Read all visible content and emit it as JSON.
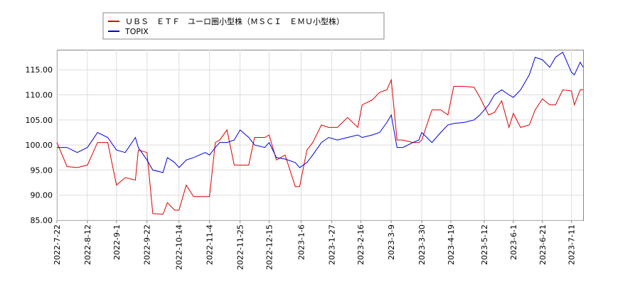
{
  "chart_data": {
    "type": "line",
    "x": [
      "2022-7-22",
      "2022-7-29",
      "2022-8-5",
      "2022-8-12",
      "2022-8-19",
      "2022-8-26",
      "2022-9-1",
      "2022-9-7",
      "2022-9-14",
      "2022-9-16",
      "2022-9-22",
      "2022-9-26",
      "2022-10-3",
      "2022-10-6",
      "2022-10-11",
      "2022-10-14",
      "2022-10-19",
      "2022-10-24",
      "2022-11-1",
      "2022-11-4",
      "2022-11-8",
      "2022-11-11",
      "2022-11-16",
      "2022-11-21",
      "2022-11-25",
      "2022-12-1",
      "2022-12-5",
      "2022-12-12",
      "2022-12-15",
      "2022-12-20",
      "2022-12-26",
      "2023-1-2",
      "2023-1-5",
      "2023-1-10",
      "2023-1-14",
      "2023-1-20",
      "2023-1-25",
      "2023-1-31",
      "2023-2-7",
      "2023-2-14",
      "2023-2-17",
      "2023-2-24",
      "2023-3-1",
      "2023-3-6",
      "2023-3-9",
      "2023-3-13",
      "2023-3-17",
      "2023-3-24",
      "2023-3-28",
      "2023-3-30",
      "2023-4-6",
      "2023-4-12",
      "2023-4-17",
      "2023-4-21",
      "2023-4-28",
      "2023-5-5",
      "2023-5-9",
      "2023-5-15",
      "2023-5-19",
      "2023-5-24",
      "2023-5-29",
      "2023-6-1",
      "2023-6-6",
      "2023-6-12",
      "2023-6-16",
      "2023-6-21",
      "2023-6-26",
      "2023-6-30",
      "2023-7-5",
      "2023-7-11",
      "2023-7-13",
      "2023-7-17",
      "2023-7-19"
    ],
    "series": [
      {
        "name": "ＵＢＳ　ＥＴＦ　ユーロ圏小型株（ＭＳＣＩ　ＥＭＵ小型株）",
        "color": "#dd0000",
        "values": [
          100.5,
          95.7,
          95.5,
          96,
          100.5,
          100.5,
          92,
          93.5,
          93,
          99,
          98.5,
          86.3,
          86.2,
          88.5,
          87,
          87,
          92,
          89.7,
          89.7,
          89.7,
          100.5,
          101,
          103,
          96,
          96,
          96,
          101.5,
          101.5,
          102,
          97,
          98,
          91.7,
          91.7,
          99,
          100.5,
          104,
          103.5,
          103.5,
          105.5,
          103.5,
          108,
          109,
          110.5,
          111,
          113,
          101,
          101,
          100.5,
          100.5,
          101,
          107,
          107,
          106,
          111.7,
          111.7,
          111.5,
          109.5,
          106,
          106.5,
          108.8,
          103.5,
          106.3,
          103.5,
          104,
          107,
          109.2,
          108,
          108,
          111,
          110.8,
          108,
          111,
          111
        ]
      },
      {
        "name": "TOPIX",
        "color": "#0000dd",
        "values": [
          99.5,
          99.5,
          98.5,
          99.5,
          102.5,
          101.5,
          99,
          98.5,
          101.5,
          99.5,
          97,
          95,
          94.5,
          97.5,
          96.5,
          95.5,
          97,
          97.5,
          98.5,
          98,
          99.5,
          100.5,
          100.5,
          101,
          103,
          101.5,
          100,
          99.5,
          100.5,
          97.5,
          97.2,
          96.5,
          95.5,
          96.5,
          98,
          100.5,
          101.5,
          101,
          101.5,
          102,
          101.5,
          102,
          102.5,
          104.5,
          106,
          99.5,
          99.5,
          100.5,
          101,
          102.5,
          100.5,
          102.5,
          104,
          104.3,
          104.5,
          105,
          106,
          108,
          110,
          111,
          110,
          109.5,
          111,
          114,
          117.5,
          117,
          115.5,
          117.5,
          118.5,
          114.5,
          114,
          116.5,
          115.5
        ]
      }
    ],
    "xlim": [
      "2022-7-22",
      "2023-7-19"
    ],
    "xticks": [
      "2022-7-22",
      "2022-8-12",
      "2022-9-1",
      "2022-9-22",
      "2022-10-14",
      "2022-11-4",
      "2022-11-25",
      "2022-12-15",
      "2023-1-6",
      "2023-1-27",
      "2023-2-16",
      "2023-3-9",
      "2023-3-30",
      "2023-4-19",
      "2023-5-12",
      "2023-6-1",
      "2023-6-21",
      "2023-7-11"
    ],
    "ylim": [
      85,
      119
    ],
    "yticks": [
      {
        "value": 85,
        "label": "85.00"
      },
      {
        "value": 90,
        "label": "90.00"
      },
      {
        "value": 95,
        "label": "95.00"
      },
      {
        "value": 100,
        "label": "100.00"
      },
      {
        "value": 105,
        "label": "105.00"
      },
      {
        "value": 110,
        "label": "110.00"
      },
      {
        "value": 115,
        "label": "115.00"
      }
    ],
    "grid": true
  }
}
